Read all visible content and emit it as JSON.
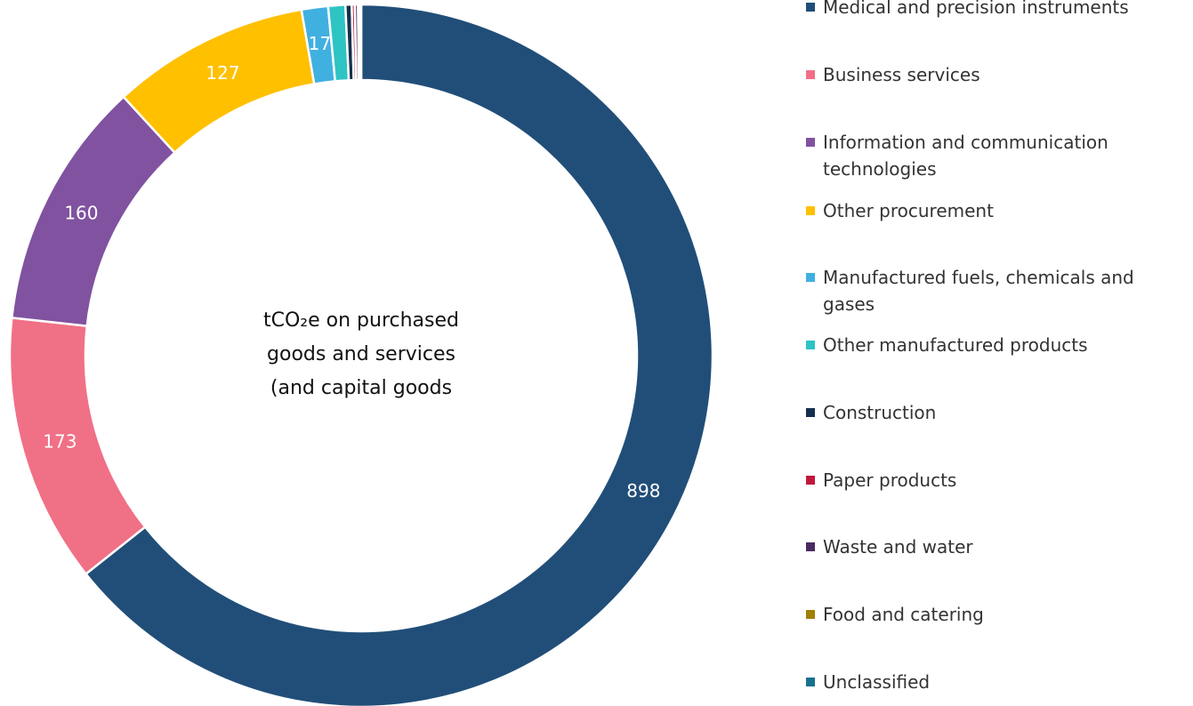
{
  "chart_data": {
    "type": "pie",
    "center_text": [
      "tCO₂e on purchased",
      "goods and services",
      "(and capital goods"
    ],
    "categories": [
      "Medical and precision instruments",
      "Business services",
      "Information and communication technologies",
      "Other procurement",
      "Manufactured fuels, chemicals and gases",
      "Other manufactured products",
      "Construction",
      "Paper products",
      "Waste and water",
      "Food and catering",
      "Unclassified"
    ],
    "values": [
      898,
      173,
      160,
      127,
      17,
      11,
      4,
      2,
      2,
      1,
      1
    ],
    "colors": [
      "#214e78",
      "#f07086",
      "#8052a0",
      "#ffc000",
      "#40b0e0",
      "#2ec4c4",
      "#14304e",
      "#c0183c",
      "#4a2a60",
      "#a08000",
      "#1a7090"
    ],
    "legend": "right"
  }
}
